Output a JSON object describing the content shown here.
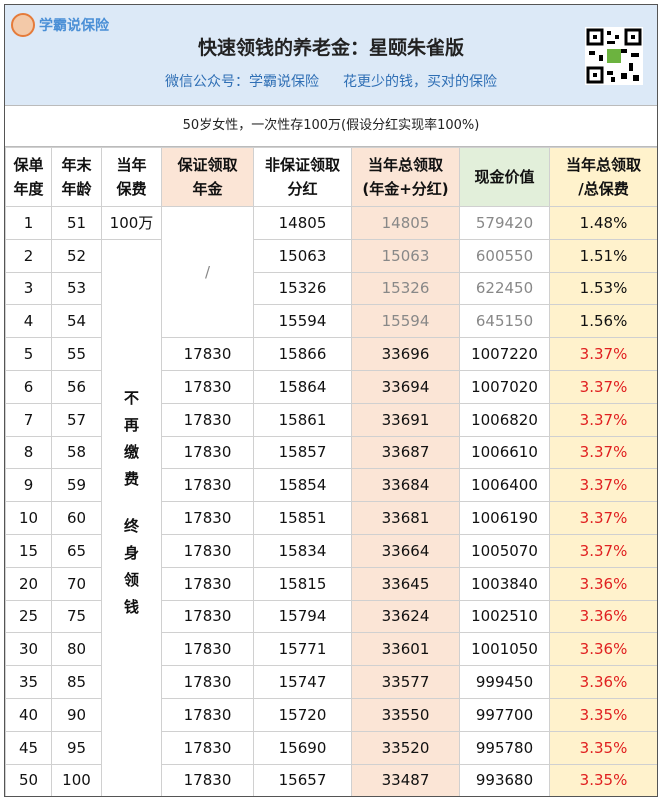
{
  "header": {
    "logo": "学霸说保险",
    "title": "快速领钱的养老金：星颐朱雀版",
    "subtitle_left": "微信公众号：学霸说保险",
    "subtitle_right": "花更少的钱，买对的保险"
  },
  "note": "50岁女性，一次性存100万(假设分红实现率100%)",
  "table": {
    "headers": [
      "保单\n年度",
      "年末\n年龄",
      "当年\n保费",
      "保证领取\n年金",
      "非保证领取\n分红",
      "当年总领取\n(年金+分红)",
      "现金价值",
      "当年总领取\n/总保费"
    ],
    "premium_first": "100万",
    "premium_rest": [
      "不再缴费",
      "终身领钱"
    ],
    "guaranteed_none": "/",
    "rows": [
      {
        "year": 1,
        "age": 51,
        "dividend": 14805,
        "total": 14805,
        "cash": 579420,
        "ratio": "1.48%"
      },
      {
        "year": 2,
        "age": 52,
        "dividend": 15063,
        "total": 15063,
        "cash": 600550,
        "ratio": "1.51%"
      },
      {
        "year": 3,
        "age": 53,
        "dividend": 15326,
        "total": 15326,
        "cash": 622450,
        "ratio": "1.53%"
      },
      {
        "year": 4,
        "age": 54,
        "dividend": 15594,
        "total": 15594,
        "cash": 645150,
        "ratio": "1.56%"
      },
      {
        "year": 5,
        "age": 55,
        "guaranteed": 17830,
        "dividend": 15866,
        "total": 33696,
        "cash": 1007220,
        "ratio": "3.37%"
      },
      {
        "year": 6,
        "age": 56,
        "guaranteed": 17830,
        "dividend": 15864,
        "total": 33694,
        "cash": 1007020,
        "ratio": "3.37%"
      },
      {
        "year": 7,
        "age": 57,
        "guaranteed": 17830,
        "dividend": 15861,
        "total": 33691,
        "cash": 1006820,
        "ratio": "3.37%"
      },
      {
        "year": 8,
        "age": 58,
        "guaranteed": 17830,
        "dividend": 15857,
        "total": 33687,
        "cash": 1006610,
        "ratio": "3.37%"
      },
      {
        "year": 9,
        "age": 59,
        "guaranteed": 17830,
        "dividend": 15854,
        "total": 33684,
        "cash": 1006400,
        "ratio": "3.37%"
      },
      {
        "year": 10,
        "age": 60,
        "guaranteed": 17830,
        "dividend": 15851,
        "total": 33681,
        "cash": 1006190,
        "ratio": "3.37%"
      },
      {
        "year": 15,
        "age": 65,
        "guaranteed": 17830,
        "dividend": 15834,
        "total": 33664,
        "cash": 1005070,
        "ratio": "3.37%"
      },
      {
        "year": 20,
        "age": 70,
        "guaranteed": 17830,
        "dividend": 15815,
        "total": 33645,
        "cash": 1003840,
        "ratio": "3.36%"
      },
      {
        "year": 25,
        "age": 75,
        "guaranteed": 17830,
        "dividend": 15794,
        "total": 33624,
        "cash": 1002510,
        "ratio": "3.36%"
      },
      {
        "year": 30,
        "age": 80,
        "guaranteed": 17830,
        "dividend": 15771,
        "total": 33601,
        "cash": 1001050,
        "ratio": "3.36%"
      },
      {
        "year": 35,
        "age": 85,
        "guaranteed": 17830,
        "dividend": 15747,
        "total": 33577,
        "cash": 999450,
        "ratio": "3.36%"
      },
      {
        "year": 40,
        "age": 90,
        "guaranteed": 17830,
        "dividend": 15720,
        "total": 33550,
        "cash": 997700,
        "ratio": "3.35%"
      },
      {
        "year": 45,
        "age": 95,
        "guaranteed": 17830,
        "dividend": 15690,
        "total": 33520,
        "cash": 995780,
        "ratio": "3.35%"
      },
      {
        "year": 50,
        "age": 100,
        "guaranteed": 17830,
        "dividend": 15657,
        "total": 33487,
        "cash": 993680,
        "ratio": "3.35%"
      }
    ]
  }
}
